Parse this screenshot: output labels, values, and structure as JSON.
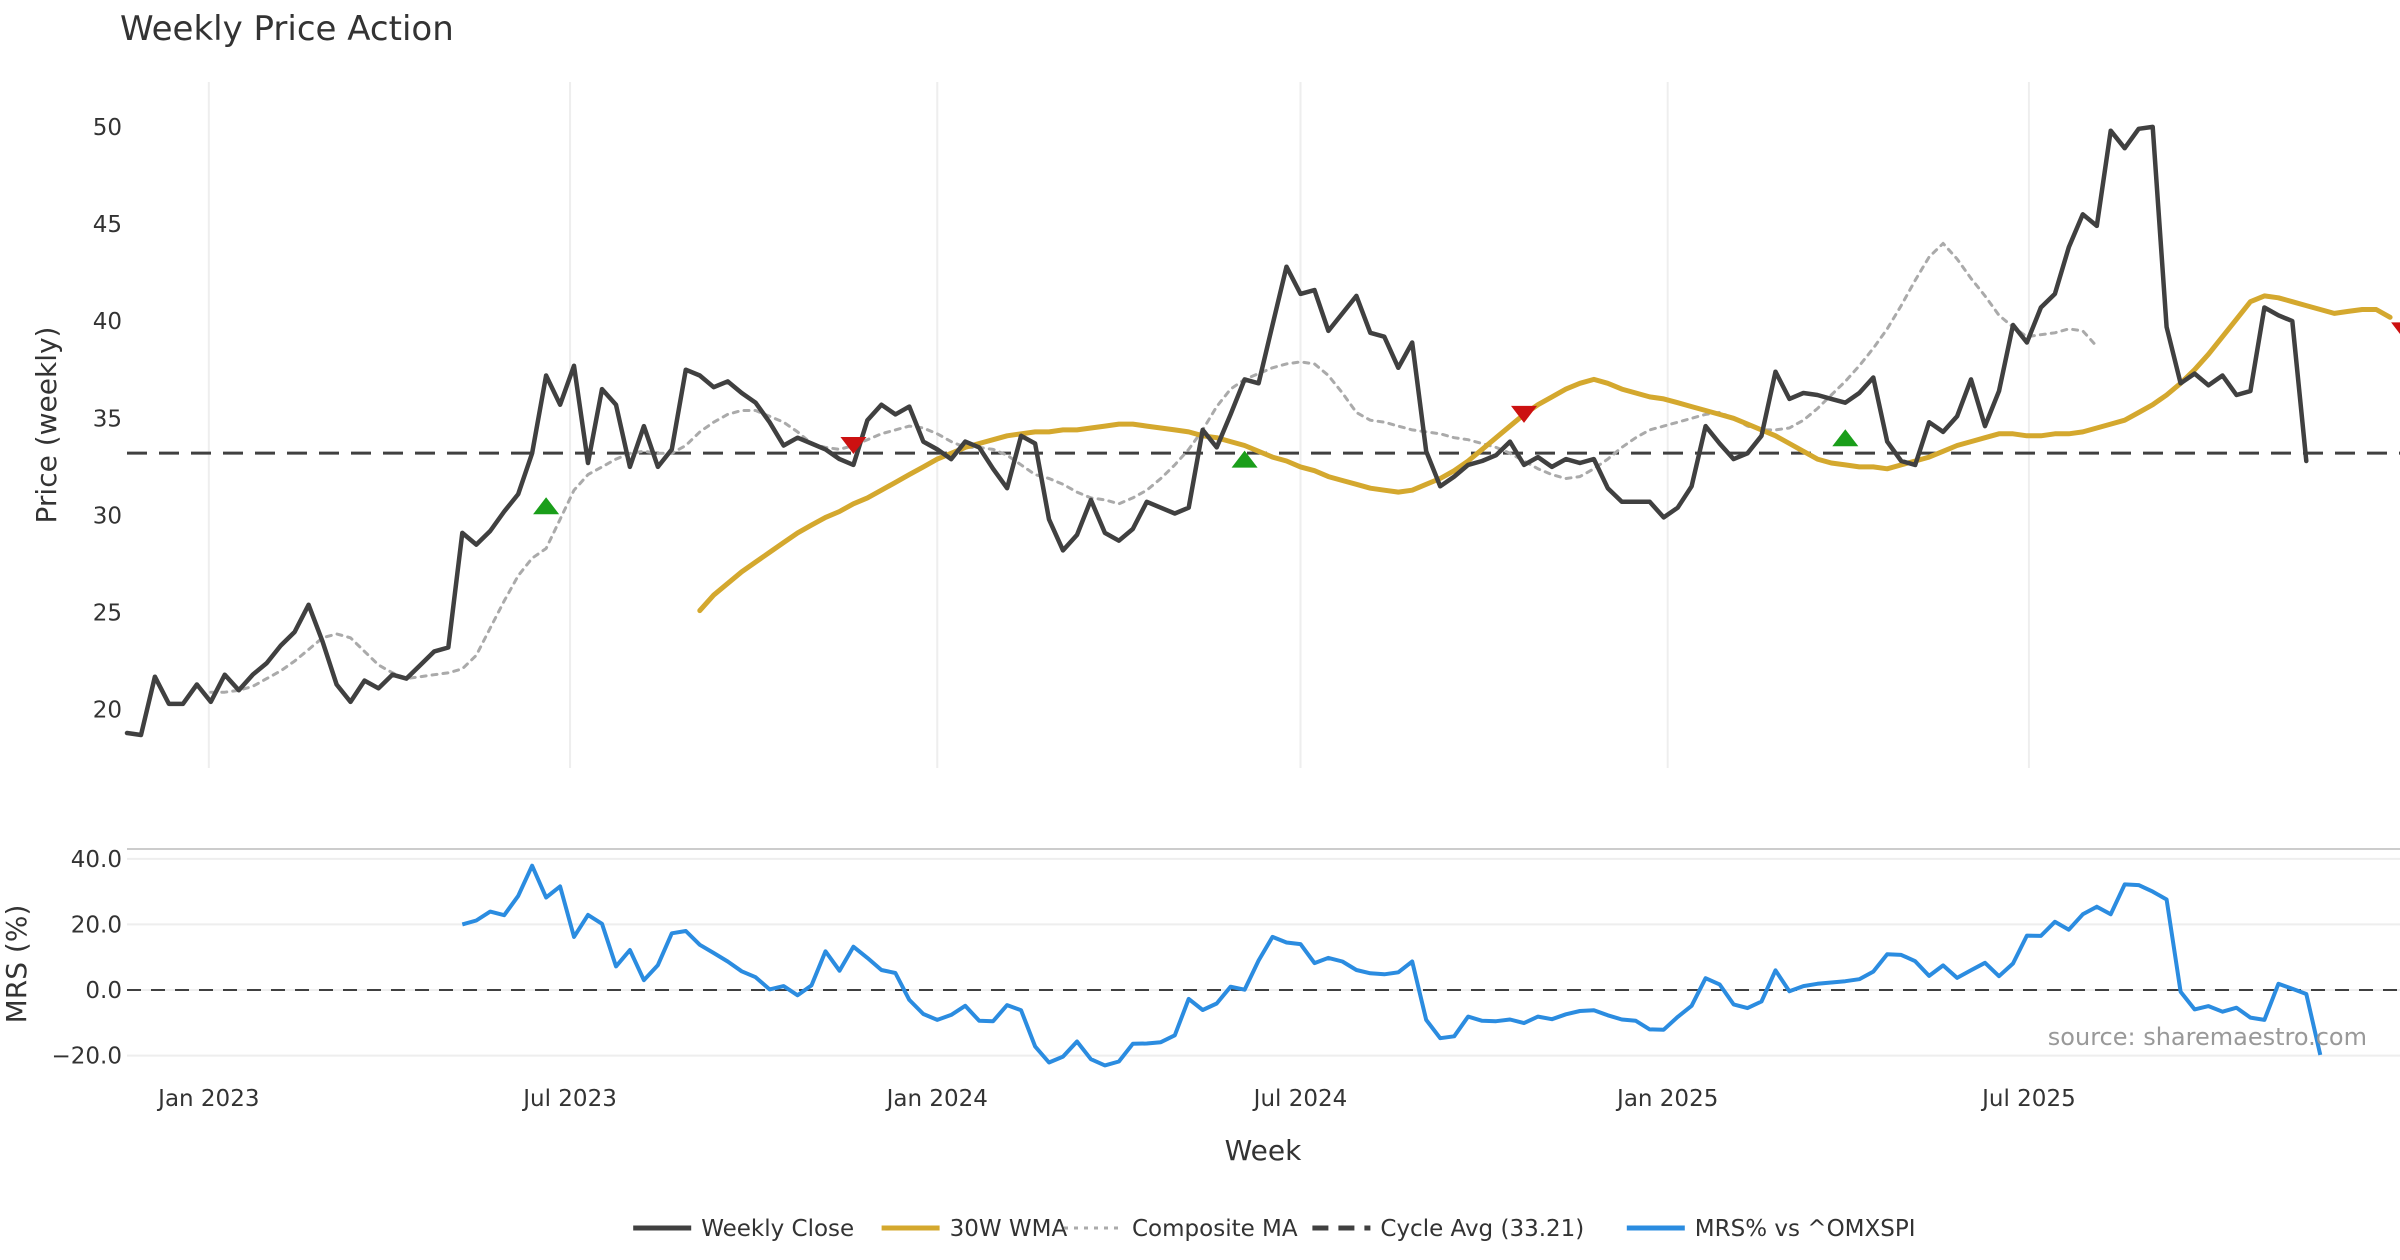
{
  "chart_data": [
    {
      "type": "line",
      "title": "Weekly Price Action",
      "ylabel": "Price (weekly)",
      "ylim": [
        17,
        52
      ],
      "yticks": [
        "20",
        "25",
        "30",
        "35",
        "40",
        "45",
        "50"
      ],
      "x_start": "2022-11-21",
      "x_end": "2025-11-17",
      "cycle_avg": 33.21,
      "series": [
        {
          "name": "Weekly Close",
          "color": "#404040",
          "values": [
            18.8,
            18.7,
            21.7,
            20.3,
            20.3,
            21.3,
            20.4,
            21.8,
            21.0,
            21.8,
            22.4,
            23.3,
            24.0,
            25.4,
            23.5,
            21.3,
            20.4,
            21.5,
            21.1,
            21.8,
            21.6,
            22.3,
            23.0,
            23.2,
            29.1,
            28.5,
            29.2,
            30.2,
            31.1,
            33.2,
            37.2,
            35.7,
            37.7,
            32.7,
            36.5,
            35.7,
            32.5,
            34.6,
            32.5,
            33.4,
            37.5,
            37.2,
            36.6,
            36.9,
            36.3,
            35.8,
            34.8,
            33.6,
            34.0,
            33.7,
            33.4,
            32.9,
            32.6,
            34.9,
            35.7,
            35.2,
            35.6,
            33.8,
            33.4,
            32.9,
            33.8,
            33.5,
            32.4,
            31.4,
            34.1,
            33.7,
            29.8,
            28.2,
            29.0,
            30.8,
            29.1,
            28.7,
            29.3,
            30.7,
            30.4,
            30.1,
            30.4,
            34.4,
            33.5,
            35.2,
            37.0,
            36.8,
            39.8,
            42.8,
            41.4,
            41.6,
            39.5,
            40.4,
            41.3,
            39.4,
            39.2,
            37.6,
            38.9,
            33.3,
            31.5,
            32.0,
            32.6,
            32.8,
            33.1,
            33.8,
            32.6,
            33.0,
            32.5,
            32.9,
            32.7,
            32.9,
            31.4,
            30.7,
            30.7,
            30.7,
            29.9,
            30.4,
            31.5,
            34.6,
            33.7,
            32.9,
            33.2,
            34.1,
            37.4,
            36.0,
            36.3,
            36.2,
            36.0,
            35.8,
            36.3,
            37.1,
            33.8,
            32.8,
            32.6,
            34.8,
            34.3,
            35.1,
            37.0,
            34.6,
            36.4,
            39.8,
            38.9,
            40.7,
            41.4,
            43.8,
            45.5,
            44.9,
            49.8,
            48.9,
            49.9,
            50.0,
            39.7,
            36.8,
            37.3,
            36.7,
            37.2,
            36.2,
            36.4,
            40.7,
            40.3,
            40.0,
            32.8
          ]
        },
        {
          "name": "30W WMA",
          "color": "#d4a82e",
          "start_index": 41,
          "values": [
            25.1,
            25.9,
            26.5,
            27.1,
            27.6,
            28.1,
            28.6,
            29.1,
            29.5,
            29.9,
            30.2,
            30.6,
            30.9,
            31.3,
            31.7,
            32.1,
            32.5,
            32.9,
            33.2,
            33.5,
            33.7,
            33.9,
            34.1,
            34.2,
            34.3,
            34.3,
            34.4,
            34.4,
            34.5,
            34.6,
            34.7,
            34.7,
            34.6,
            34.5,
            34.4,
            34.3,
            34.1,
            34.0,
            33.8,
            33.6,
            33.3,
            33.0,
            32.8,
            32.5,
            32.3,
            32.0,
            31.8,
            31.6,
            31.4,
            31.3,
            31.2,
            31.3,
            31.6,
            31.9,
            32.3,
            32.8,
            33.4,
            34.0,
            34.6,
            35.2,
            35.7,
            36.1,
            36.5,
            36.8,
            37.0,
            36.8,
            36.5,
            36.3,
            36.1,
            36.0,
            35.8,
            35.6,
            35.4,
            35.2,
            35.0,
            34.7,
            34.4,
            34.1,
            33.7,
            33.3,
            32.9,
            32.7,
            32.6,
            32.5,
            32.5,
            32.4,
            32.6,
            32.8,
            33.0,
            33.3,
            33.6,
            33.8,
            34.0,
            34.2,
            34.2,
            34.1,
            34.1,
            34.2,
            34.2,
            34.3,
            34.5,
            34.7,
            34.9,
            35.3,
            35.7,
            36.2,
            36.8,
            37.5,
            38.3,
            39.2,
            40.1,
            41.0,
            41.3,
            41.2,
            41.0,
            40.8,
            40.6,
            40.4,
            40.5,
            40.6,
            40.6,
            40.2
          ]
        },
        {
          "name": "Composite MA",
          "color": "#aaaaaa",
          "start_index": 6,
          "values": [
            20.9,
            20.9,
            21.0,
            21.2,
            21.6,
            22.0,
            22.5,
            23.1,
            23.7,
            23.9,
            23.7,
            23.0,
            22.3,
            21.9,
            21.6,
            21.7,
            21.8,
            21.9,
            22.1,
            22.8,
            24.2,
            25.6,
            26.9,
            27.8,
            28.3,
            29.8,
            31.3,
            32.1,
            32.5,
            32.9,
            33.2,
            33.3,
            33.2,
            33.2,
            33.6,
            34.3,
            34.8,
            35.2,
            35.4,
            35.4,
            35.1,
            34.8,
            34.3,
            33.7,
            33.5,
            33.4,
            33.6,
            33.9,
            34.2,
            34.4,
            34.6,
            34.5,
            34.2,
            33.8,
            33.5,
            33.5,
            33.4,
            33.1,
            32.6,
            32.1,
            31.9,
            31.6,
            31.2,
            30.9,
            30.8,
            30.6,
            30.9,
            31.3,
            31.9,
            32.6,
            33.4,
            34.4,
            35.6,
            36.5,
            37.0,
            37.3,
            37.6,
            37.8,
            37.9,
            37.8,
            37.2,
            36.3,
            35.3,
            34.9,
            34.8,
            34.6,
            34.4,
            34.3,
            34.2,
            34.0,
            33.9,
            33.7,
            33.5,
            33.2,
            32.8,
            32.4,
            32.1,
            31.9,
            32.0,
            32.4,
            32.9,
            33.5,
            34.0,
            34.4,
            34.6,
            34.8,
            35.0,
            35.2,
            35.3,
            35.0,
            34.6,
            34.4,
            34.4,
            34.5,
            34.9,
            35.5,
            36.2,
            36.9,
            37.7,
            38.6,
            39.6,
            40.8,
            42.1,
            43.3,
            44.0,
            43.2,
            42.2,
            41.3,
            40.3,
            39.7,
            39.2,
            39.3,
            39.4,
            39.6,
            39.5,
            38.7
          ]
        }
      ],
      "signals": [
        {
          "type": "buy",
          "index": 30,
          "value": 30.5,
          "color": "#1a9e1a"
        },
        {
          "type": "sell",
          "index": 52,
          "value": 33.6,
          "color": "#cc1111"
        },
        {
          "type": "buy",
          "index": 80,
          "value": 32.9,
          "color": "#1a9e1a"
        },
        {
          "type": "sell",
          "index": 100,
          "value": 35.2,
          "color": "#cc1111"
        },
        {
          "type": "buy",
          "index": 123,
          "value": 34.0,
          "color": "#1a9e1a"
        },
        {
          "type": "sell",
          "index": 163,
          "value": 39.5,
          "color": "#cc1111"
        }
      ]
    },
    {
      "type": "line",
      "ylabel": "MRS (%)",
      "xlabel": "Week",
      "ylim": [
        -25,
        43
      ],
      "yticks": [
        "40.0",
        "20.0",
        "0.0",
        "−20.0"
      ],
      "xticks": [
        "Jan 2023",
        "Jul 2023",
        "Jan 2024",
        "Jul 2024",
        "Jan 2025",
        "Jul 2025"
      ],
      "series": [
        {
          "name": "MRS% vs ^OMXSPI",
          "color": "#2b8ce0",
          "start_index": 24,
          "values": [
            20.0,
            21.2,
            23.9,
            22.8,
            28.7,
            37.9,
            28.2,
            31.6,
            16.2,
            22.9,
            20.2,
            7.2,
            12.2,
            3.0,
            7.6,
            17.3,
            18.0,
            13.8,
            11.3,
            8.7,
            5.7,
            3.9,
            0.2,
            1.2,
            -1.6,
            1.4,
            11.8,
            5.9,
            13.2,
            9.8,
            6.1,
            5.2,
            -3.0,
            -7.3,
            -9.1,
            -7.6,
            -4.8,
            -9.4,
            -9.5,
            -4.6,
            -6.2,
            -17.2,
            -22.1,
            -20.3,
            -15.7,
            -21.1,
            -23.0,
            -21.8,
            -16.4,
            -16.3,
            -15.9,
            -13.8,
            -2.7,
            -6.1,
            -4.1,
            1.0,
            0.1,
            9.0,
            16.2,
            14.5,
            14.0,
            8.2,
            9.8,
            8.7,
            6.1,
            5.1,
            4.8,
            5.4,
            8.7,
            -9.1,
            -14.7,
            -14.1,
            -8.1,
            -9.4,
            -9.5,
            -9.0,
            -10.1,
            -8.1,
            -8.9,
            -7.4,
            -6.4,
            -6.2,
            -7.7,
            -9.0,
            -9.4,
            -12.0,
            -12.1,
            -8.2,
            -4.8,
            3.6,
            1.7,
            -4.4,
            -5.5,
            -3.5,
            6.0,
            -0.4,
            1.2,
            1.9,
            2.3,
            2.7,
            3.3,
            5.6,
            10.9,
            10.7,
            8.8,
            4.3,
            7.5,
            3.7,
            6.0,
            8.3,
            4.2,
            8.1,
            16.6,
            16.5,
            20.8,
            18.4,
            23.1,
            25.4,
            23.1,
            32.2,
            32.0,
            30.0,
            27.6,
            -0.5,
            -5.9,
            -4.9,
            -6.6,
            -5.4,
            -8.4,
            -9.1,
            1.9,
            0.4,
            -1.2,
            -19.8
          ]
        }
      ]
    }
  ],
  "legend": [
    {
      "label": "Weekly Close",
      "style": "solid",
      "color": "#404040"
    },
    {
      "label": "30W WMA",
      "style": "solid",
      "color": "#d4a82e"
    },
    {
      "label": "Composite MA",
      "style": "dotted",
      "color": "#aaaaaa"
    },
    {
      "label": "Cycle Avg (33.21)",
      "style": "dashed",
      "color": "#404040"
    },
    {
      "label": "MRS% vs ^OMXSPI",
      "style": "solid",
      "color": "#2b8ce0"
    }
  ],
  "source_text": "source: sharemaestro.com"
}
